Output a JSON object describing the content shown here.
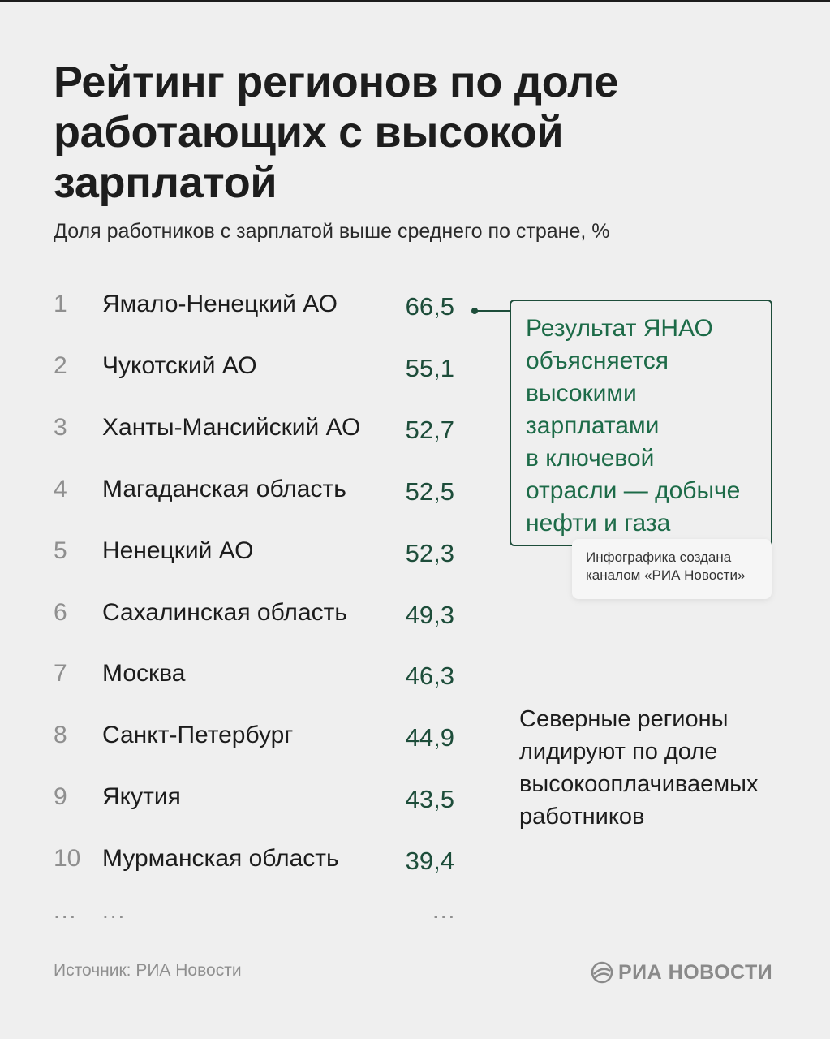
{
  "title": "Рейтинг регионов по доле работающих с высокой зарплатой",
  "subtitle": "Доля работников с зарплатой выше среднего по стране, %",
  "chart_data": {
    "type": "table",
    "title": "Рейтинг регионов по доле работающих с высокой зарплатой",
    "subtitle": "Доля работников с зарплатой выше среднего по стране, %",
    "columns": [
      "rank",
      "region",
      "value"
    ],
    "rows": [
      {
        "rank": "1",
        "region": "Ямало-Ненецкий АО",
        "value": "66,5",
        "v": 66.5
      },
      {
        "rank": "2",
        "region": "Чукотский АО",
        "value": "55,1",
        "v": 55.1
      },
      {
        "rank": "3",
        "region": "Ханты-Мансийский АО",
        "value": "52,7",
        "v": 52.7
      },
      {
        "rank": "4",
        "region": "Магаданская область",
        "value": "52,5",
        "v": 52.5
      },
      {
        "rank": "5",
        "region": "Ненецкий АО",
        "value": "52,3",
        "v": 52.3
      },
      {
        "rank": "6",
        "region": "Сахалинская область",
        "value": "49,3",
        "v": 49.3
      },
      {
        "rank": "7",
        "region": "Москва",
        "value": "46,3",
        "v": 46.3
      },
      {
        "rank": "8",
        "region": "Санкт-Петербург",
        "value": "44,9",
        "v": 44.9
      },
      {
        "rank": "9",
        "region": "Якутия",
        "value": "43,5",
        "v": 43.5
      },
      {
        "rank": "10",
        "region": "Мурманская область",
        "value": "39,4",
        "v": 39.4
      }
    ],
    "ellipsis": "...",
    "annotation": "Результат ЯНАО объясняется высокими зарплатами в ключевой отрасли — добыче нефти и газа",
    "note": "Северные регионы лидируют по доле высокооплачиваемых работников"
  },
  "callout": {
    "lines": [
      "Результат ЯНАО",
      "объясняется",
      "высокими",
      "зарплатами",
      "в ключевой",
      "отрасли — добыче",
      "нефти и газа"
    ]
  },
  "credit": {
    "line1": "Инфографика создана",
    "line2": "каналом «РИА Новости»"
  },
  "note": {
    "lines": [
      "Северные регионы",
      "лидируют по доле",
      "высокооплачиваемых",
      "работников"
    ]
  },
  "source": "Источник: РИА Новости",
  "brand": {
    "name": "РИА НОВОСТИ",
    "logo_icon": "ria-novosti-logo-icon"
  },
  "colors": {
    "background": "#efefef",
    "value_text": "#1d4d3a",
    "callout_border": "#1d4d3a",
    "callout_text": "#1d6b48",
    "rank_text": "#8f8f8f"
  }
}
